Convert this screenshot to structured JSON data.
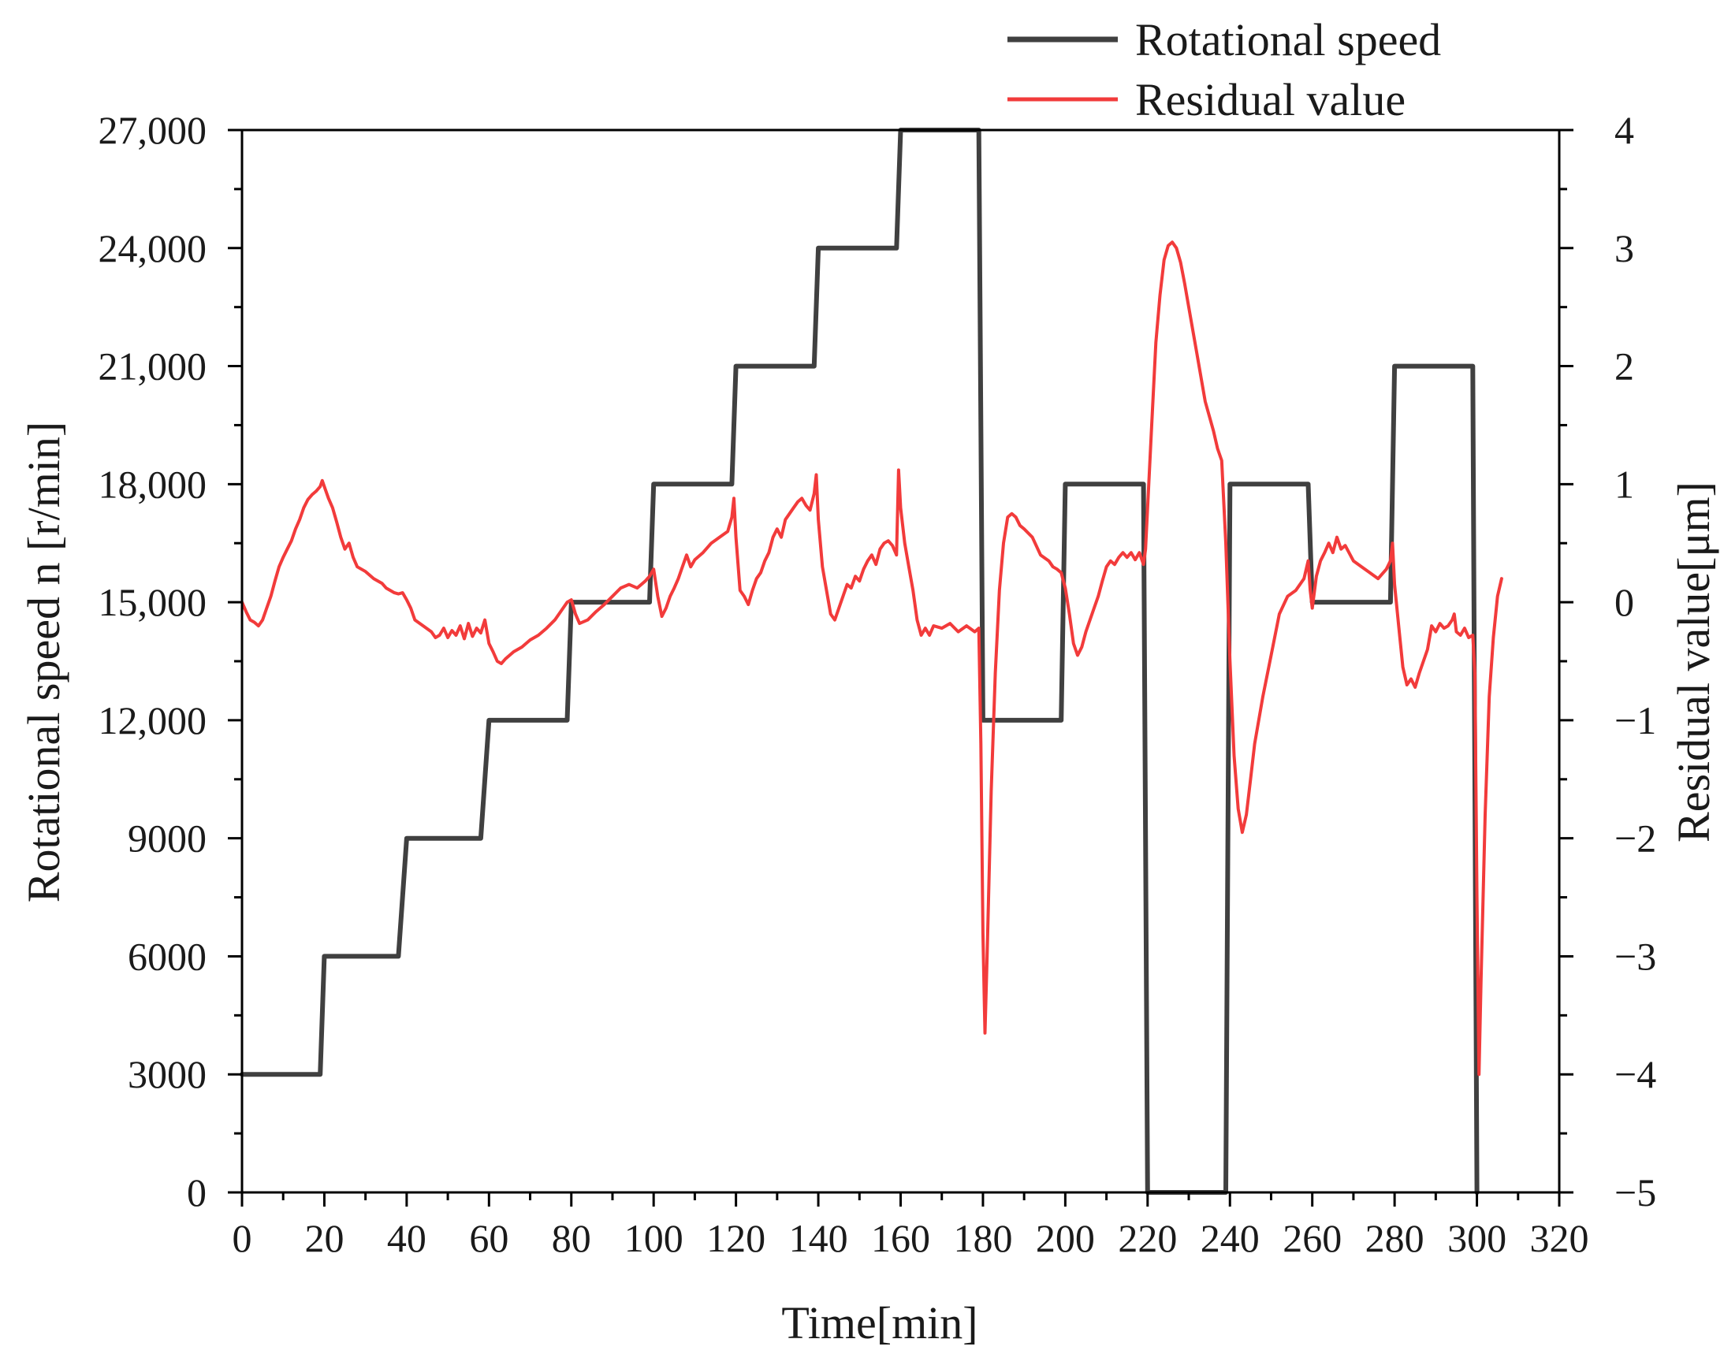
{
  "chart_data": {
    "type": "line",
    "xlabel": "Time[min]",
    "ylabel_left": "Rotational speed n [r/min]",
    "ylabel_right": "Residual value[μm]",
    "xlim": [
      0,
      320
    ],
    "ylim_left": [
      0,
      27000
    ],
    "ylim_right": [
      -5,
      4
    ],
    "grid": false,
    "legend_position": "top-right",
    "x_ticks": [
      0,
      20,
      40,
      60,
      80,
      100,
      120,
      140,
      160,
      180,
      200,
      220,
      240,
      260,
      280,
      300,
      320
    ],
    "x_tick_labels": [
      "0",
      "20",
      "40",
      "60",
      "80",
      "100",
      "120",
      "140",
      "160",
      "180",
      "200",
      "220",
      "240",
      "260",
      "280",
      "300",
      "320"
    ],
    "y_left_ticks": [
      0,
      3000,
      6000,
      9000,
      12000,
      15000,
      18000,
      21000,
      24000,
      27000
    ],
    "y_left_tick_labels": [
      "0",
      "3000",
      "6000",
      "9000",
      "12,000",
      "15,000",
      "18,000",
      "21,000",
      "24,000",
      "27,000"
    ],
    "y_right_ticks": [
      -5,
      -4,
      -3,
      -2,
      -1,
      0,
      1,
      2,
      3,
      4
    ],
    "y_right_tick_labels": [
      "−5",
      "−4",
      "−3",
      "−2",
      "−1",
      "0",
      "1",
      "2",
      "3",
      "4"
    ],
    "series": [
      {
        "name": "Rotational speed",
        "axis": "left",
        "color": "#404040",
        "points": [
          [
            0,
            3000
          ],
          [
            19,
            3000
          ],
          [
            20,
            6000
          ],
          [
            38,
            6000
          ],
          [
            40,
            9000
          ],
          [
            58,
            9000
          ],
          [
            60,
            12000
          ],
          [
            79,
            12000
          ],
          [
            80,
            15000
          ],
          [
            99,
            15000
          ],
          [
            100,
            18000
          ],
          [
            119,
            18000
          ],
          [
            120,
            21000
          ],
          [
            139,
            21000
          ],
          [
            140,
            24000
          ],
          [
            159,
            24000
          ],
          [
            160,
            27000
          ],
          [
            179,
            27000
          ],
          [
            180,
            12000
          ],
          [
            199,
            12000
          ],
          [
            200,
            18000
          ],
          [
            219,
            18000
          ],
          [
            220,
            0
          ],
          [
            239,
            0
          ],
          [
            240,
            18000
          ],
          [
            259,
            18000
          ],
          [
            260,
            15000
          ],
          [
            279,
            15000
          ],
          [
            280,
            21000
          ],
          [
            299,
            21000
          ],
          [
            300,
            0
          ]
        ]
      },
      {
        "name": "Residual value",
        "axis": "right",
        "color": "#f23b3b",
        "points": [
          [
            0,
            0
          ],
          [
            1,
            -0.08
          ],
          [
            2,
            -0.15
          ],
          [
            3,
            -0.17
          ],
          [
            4,
            -0.2
          ],
          [
            5,
            -0.15
          ],
          [
            6,
            -0.05
          ],
          [
            7,
            0.05
          ],
          [
            8,
            0.18
          ],
          [
            9,
            0.3
          ],
          [
            10,
            0.38
          ],
          [
            11,
            0.45
          ],
          [
            12,
            0.52
          ],
          [
            13,
            0.62
          ],
          [
            14,
            0.7
          ],
          [
            15,
            0.8
          ],
          [
            16,
            0.87
          ],
          [
            17,
            0.91
          ],
          [
            18,
            0.94
          ],
          [
            19,
            0.98
          ],
          [
            19.5,
            1.03
          ],
          [
            20,
            0.98
          ],
          [
            21,
            0.88
          ],
          [
            22,
            0.8
          ],
          [
            23,
            0.68
          ],
          [
            24,
            0.55
          ],
          [
            25,
            0.45
          ],
          [
            26,
            0.5
          ],
          [
            27,
            0.38
          ],
          [
            28,
            0.3
          ],
          [
            30,
            0.26
          ],
          [
            32,
            0.2
          ],
          [
            34,
            0.16
          ],
          [
            35,
            0.12
          ],
          [
            36,
            0.1
          ],
          [
            37,
            0.08
          ],
          [
            38,
            0.07
          ],
          [
            39,
            0.08
          ],
          [
            40,
            0.02
          ],
          [
            41,
            -0.05
          ],
          [
            42,
            -0.15
          ],
          [
            44,
            -0.2
          ],
          [
            46,
            -0.25
          ],
          [
            47,
            -0.3
          ],
          [
            48,
            -0.28
          ],
          [
            49,
            -0.22
          ],
          [
            50,
            -0.3
          ],
          [
            51,
            -0.24
          ],
          [
            52,
            -0.28
          ],
          [
            53,
            -0.2
          ],
          [
            54,
            -0.31
          ],
          [
            55,
            -0.18
          ],
          [
            56,
            -0.29
          ],
          [
            57,
            -0.22
          ],
          [
            58,
            -0.26
          ],
          [
            59,
            -0.15
          ],
          [
            60,
            -0.35
          ],
          [
            61,
            -0.42
          ],
          [
            62,
            -0.5
          ],
          [
            63,
            -0.52
          ],
          [
            64,
            -0.48
          ],
          [
            66,
            -0.42
          ],
          [
            68,
            -0.38
          ],
          [
            70,
            -0.32
          ],
          [
            72,
            -0.28
          ],
          [
            74,
            -0.22
          ],
          [
            76,
            -0.15
          ],
          [
            78,
            -0.05
          ],
          [
            79,
            0.0
          ],
          [
            80,
            0.02
          ],
          [
            81,
            -0.1
          ],
          [
            82,
            -0.18
          ],
          [
            84,
            -0.15
          ],
          [
            86,
            -0.08
          ],
          [
            88,
            -0.02
          ],
          [
            90,
            0.05
          ],
          [
            92,
            0.12
          ],
          [
            94,
            0.15
          ],
          [
            96,
            0.12
          ],
          [
            98,
            0.18
          ],
          [
            99,
            0.22
          ],
          [
            100,
            0.28
          ],
          [
            101,
            0.05
          ],
          [
            102,
            -0.12
          ],
          [
            103,
            -0.05
          ],
          [
            104,
            0.05
          ],
          [
            105,
            0.12
          ],
          [
            106,
            0.2
          ],
          [
            107,
            0.3
          ],
          [
            108,
            0.4
          ],
          [
            109,
            0.3
          ],
          [
            110,
            0.36
          ],
          [
            112,
            0.42
          ],
          [
            114,
            0.5
          ],
          [
            116,
            0.55
          ],
          [
            118,
            0.6
          ],
          [
            119,
            0.72
          ],
          [
            119.5,
            0.88
          ],
          [
            120,
            0.55
          ],
          [
            121,
            0.1
          ],
          [
            122,
            0.05
          ],
          [
            123,
            -0.02
          ],
          [
            124,
            0.1
          ],
          [
            125,
            0.2
          ],
          [
            126,
            0.25
          ],
          [
            127,
            0.35
          ],
          [
            128,
            0.42
          ],
          [
            129,
            0.55
          ],
          [
            130,
            0.62
          ],
          [
            131,
            0.55
          ],
          [
            132,
            0.7
          ],
          [
            133,
            0.75
          ],
          [
            134,
            0.8
          ],
          [
            135,
            0.85
          ],
          [
            136,
            0.88
          ],
          [
            137,
            0.82
          ],
          [
            138,
            0.78
          ],
          [
            139,
            0.92
          ],
          [
            139.5,
            1.08
          ],
          [
            140,
            0.7
          ],
          [
            141,
            0.3
          ],
          [
            142,
            0.1
          ],
          [
            143,
            -0.1
          ],
          [
            144,
            -0.15
          ],
          [
            145,
            -0.05
          ],
          [
            146,
            0.05
          ],
          [
            147,
            0.15
          ],
          [
            148,
            0.12
          ],
          [
            149,
            0.22
          ],
          [
            150,
            0.18
          ],
          [
            151,
            0.28
          ],
          [
            152,
            0.35
          ],
          [
            153,
            0.4
          ],
          [
            154,
            0.32
          ],
          [
            155,
            0.45
          ],
          [
            156,
            0.5
          ],
          [
            157,
            0.52
          ],
          [
            158,
            0.48
          ],
          [
            159,
            0.4
          ],
          [
            159.5,
            1.12
          ],
          [
            160,
            0.8
          ],
          [
            161,
            0.5
          ],
          [
            162,
            0.3
          ],
          [
            163,
            0.1
          ],
          [
            164,
            -0.15
          ],
          [
            165,
            -0.28
          ],
          [
            166,
            -0.22
          ],
          [
            167,
            -0.28
          ],
          [
            168,
            -0.2
          ],
          [
            170,
            -0.22
          ],
          [
            172,
            -0.18
          ],
          [
            174,
            -0.25
          ],
          [
            176,
            -0.2
          ],
          [
            178,
            -0.25
          ],
          [
            179,
            -0.22
          ],
          [
            179.5,
            -1.2
          ],
          [
            180,
            -2.8
          ],
          [
            180.5,
            -3.65
          ],
          [
            181,
            -3.0
          ],
          [
            182,
            -1.6
          ],
          [
            183,
            -0.6
          ],
          [
            184,
            0.1
          ],
          [
            185,
            0.5
          ],
          [
            186,
            0.72
          ],
          [
            187,
            0.75
          ],
          [
            188,
            0.72
          ],
          [
            189,
            0.65
          ],
          [
            190,
            0.62
          ],
          [
            192,
            0.55
          ],
          [
            194,
            0.4
          ],
          [
            196,
            0.35
          ],
          [
            197,
            0.3
          ],
          [
            198,
            0.28
          ],
          [
            199,
            0.25
          ],
          [
            200,
            0.12
          ],
          [
            201,
            -0.1
          ],
          [
            202,
            -0.35
          ],
          [
            203,
            -0.45
          ],
          [
            204,
            -0.38
          ],
          [
            205,
            -0.25
          ],
          [
            206,
            -0.15
          ],
          [
            207,
            -0.05
          ],
          [
            208,
            0.05
          ],
          [
            209,
            0.18
          ],
          [
            210,
            0.3
          ],
          [
            211,
            0.35
          ],
          [
            212,
            0.32
          ],
          [
            213,
            0.38
          ],
          [
            214,
            0.42
          ],
          [
            215,
            0.38
          ],
          [
            216,
            0.42
          ],
          [
            217,
            0.36
          ],
          [
            218,
            0.42
          ],
          [
            219,
            0.32
          ],
          [
            219.5,
            0.45
          ],
          [
            220,
            0.8
          ],
          [
            221,
            1.5
          ],
          [
            222,
            2.2
          ],
          [
            223,
            2.6
          ],
          [
            224,
            2.9
          ],
          [
            225,
            3.02
          ],
          [
            226,
            3.05
          ],
          [
            227,
            3.0
          ],
          [
            228,
            2.88
          ],
          [
            229,
            2.7
          ],
          [
            230,
            2.5
          ],
          [
            232,
            2.1
          ],
          [
            234,
            1.7
          ],
          [
            236,
            1.45
          ],
          [
            237,
            1.3
          ],
          [
            238,
            1.2
          ],
          [
            239,
            0.5
          ],
          [
            240,
            -0.5
          ],
          [
            241,
            -1.3
          ],
          [
            242,
            -1.75
          ],
          [
            243,
            -1.95
          ],
          [
            244,
            -1.8
          ],
          [
            245,
            -1.5
          ],
          [
            246,
            -1.2
          ],
          [
            248,
            -0.8
          ],
          [
            250,
            -0.45
          ],
          [
            252,
            -0.1
          ],
          [
            254,
            0.05
          ],
          [
            256,
            0.1
          ],
          [
            258,
            0.2
          ],
          [
            259,
            0.35
          ],
          [
            259.5,
            0.1
          ],
          [
            260,
            -0.05
          ],
          [
            261,
            0.22
          ],
          [
            262,
            0.35
          ],
          [
            263,
            0.42
          ],
          [
            264,
            0.5
          ],
          [
            265,
            0.42
          ],
          [
            266,
            0.55
          ],
          [
            267,
            0.45
          ],
          [
            268,
            0.48
          ],
          [
            270,
            0.35
          ],
          [
            272,
            0.3
          ],
          [
            274,
            0.25
          ],
          [
            276,
            0.2
          ],
          [
            278,
            0.28
          ],
          [
            279,
            0.35
          ],
          [
            279.5,
            0.5
          ],
          [
            280,
            0.15
          ],
          [
            281,
            -0.2
          ],
          [
            282,
            -0.55
          ],
          [
            283,
            -0.7
          ],
          [
            284,
            -0.65
          ],
          [
            285,
            -0.72
          ],
          [
            286,
            -0.6
          ],
          [
            287,
            -0.5
          ],
          [
            288,
            -0.4
          ],
          [
            289,
            -0.2
          ],
          [
            290,
            -0.25
          ],
          [
            291,
            -0.18
          ],
          [
            292,
            -0.22
          ],
          [
            293,
            -0.2
          ],
          [
            294,
            -0.15
          ],
          [
            294.5,
            -0.1
          ],
          [
            295,
            -0.25
          ],
          [
            296,
            -0.28
          ],
          [
            297,
            -0.22
          ],
          [
            298,
            -0.3
          ],
          [
            299,
            -0.28
          ],
          [
            299.5,
            -0.6
          ],
          [
            300,
            -2.5
          ],
          [
            300.5,
            -4.0
          ],
          [
            301,
            -3.2
          ],
          [
            302,
            -1.8
          ],
          [
            303,
            -0.8
          ],
          [
            304,
            -0.3
          ],
          [
            305,
            0.05
          ],
          [
            306,
            0.2
          ]
        ]
      }
    ]
  }
}
